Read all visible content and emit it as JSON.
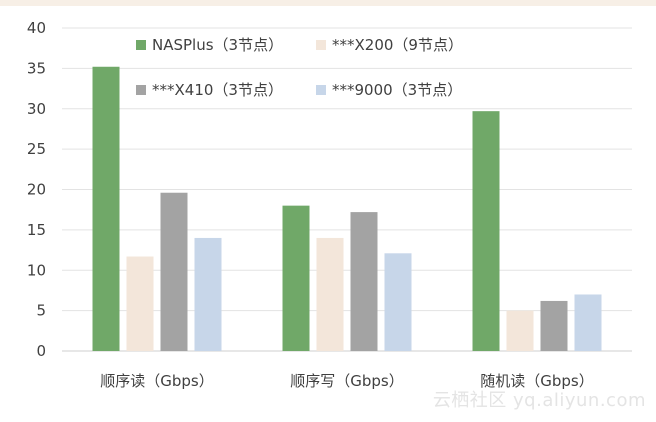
{
  "chart_data": {
    "type": "bar",
    "categories": [
      "顺序读（Gbps）",
      "顺序写（Gbps）",
      "随机读（Gbps）"
    ],
    "series": [
      {
        "name": "NASPlus（3节点）",
        "color": "#70a868",
        "values": [
          35.2,
          18.0,
          29.7
        ]
      },
      {
        "name": "***X200（9节点）",
        "color": "#f3e6da",
        "values": [
          11.7,
          14.0,
          5.0
        ]
      },
      {
        "name": "***X410（3节点）",
        "color": "#a3a3a3",
        "values": [
          19.6,
          17.2,
          6.2
        ]
      },
      {
        "name": "***9000（3节点）",
        "color": "#c7d6e9",
        "values": [
          14.0,
          12.1,
          7.0
        ]
      }
    ],
    "ylim": [
      0,
      40
    ],
    "yticks": [
      0,
      5,
      10,
      15,
      20,
      25,
      30,
      35,
      40
    ],
    "grid": true,
    "legend_position": "top-right"
  },
  "watermark": "云栖社区 yq.aliyun.com"
}
